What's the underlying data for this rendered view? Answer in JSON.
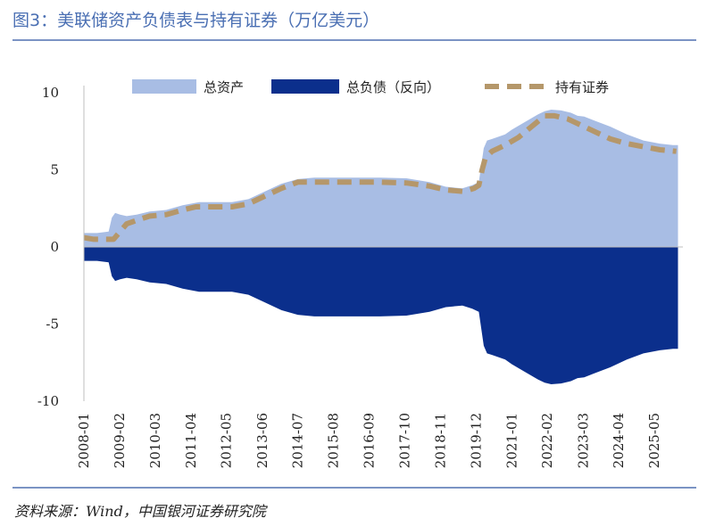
{
  "figure_title": "图3：美联储资产负债表与持有证券（万亿美元）",
  "source_note": "资料来源：Wind，中国银河证券研究院",
  "colors": {
    "title": "#4a6fb3",
    "total_assets": "#a8bde4",
    "total_liabilities": "#0b2f8c",
    "securities": "#b5976a",
    "negative_tick": "#d7191c",
    "rule": "#7b93c4"
  },
  "chart_data": {
    "type": "area",
    "title": "图3：美联储资产负债表与持有证券（万亿美元）",
    "ylim": [
      -10,
      10
    ],
    "yticks": [
      10,
      5,
      0,
      -5,
      -10
    ],
    "ytick_labels": [
      "10",
      "5",
      "0",
      "-5",
      "-10"
    ],
    "xlim": [
      2008.0,
      2026.2
    ],
    "xtick_labels": [
      "2008-01",
      "2009-02",
      "2010-03",
      "2011-04",
      "2012-05",
      "2013-06",
      "2014-07",
      "2015-08",
      "2016-09",
      "2017-10",
      "2018-11",
      "2019-12",
      "2021-01",
      "2022-02",
      "2023-03",
      "2024-04",
      "2025-05"
    ],
    "xtick_positions": [
      2008.0,
      2009.08,
      2010.17,
      2011.25,
      2012.33,
      2013.42,
      2014.5,
      2015.58,
      2016.67,
      2017.75,
      2018.83,
      2019.92,
      2021.0,
      2022.08,
      2023.17,
      2024.25,
      2025.33
    ],
    "legend": [
      "总资产",
      "总负债（反向）",
      "持有证券"
    ],
    "series": [
      {
        "name": "总资产",
        "style": "area",
        "x": [
          2008.0,
          2008.4,
          2008.75,
          2008.85,
          2008.95,
          2009.1,
          2009.3,
          2009.6,
          2010.0,
          2010.5,
          2011.0,
          2011.5,
          2012.0,
          2012.5,
          2013.0,
          2013.5,
          2014.0,
          2014.5,
          2015.0,
          2016.0,
          2017.0,
          2017.8,
          2018.5,
          2019.0,
          2019.5,
          2019.8,
          2020.0,
          2020.15,
          2020.25,
          2020.4,
          2020.8,
          2021.0,
          2021.4,
          2021.8,
          2022.0,
          2022.2,
          2022.5,
          2022.8,
          2023.0,
          2023.2,
          2023.5,
          2024.0,
          2024.5,
          2025.0,
          2025.5,
          2025.9,
          2026.05
        ],
        "values": [
          0.9,
          0.9,
          1.0,
          1.9,
          2.2,
          2.1,
          2.0,
          2.1,
          2.3,
          2.4,
          2.7,
          2.9,
          2.9,
          2.9,
          3.1,
          3.6,
          4.1,
          4.4,
          4.5,
          4.5,
          4.5,
          4.45,
          4.2,
          3.9,
          3.8,
          4.0,
          4.2,
          6.4,
          6.9,
          7.0,
          7.3,
          7.6,
          8.1,
          8.6,
          8.8,
          8.9,
          8.85,
          8.7,
          8.5,
          8.45,
          8.2,
          7.8,
          7.3,
          6.9,
          6.7,
          6.6,
          6.6
        ]
      },
      {
        "name": "总负债（反向）",
        "style": "area",
        "x": [
          2008.0,
          2008.4,
          2008.75,
          2008.85,
          2008.95,
          2009.1,
          2009.3,
          2009.6,
          2010.0,
          2010.5,
          2011.0,
          2011.5,
          2012.0,
          2012.5,
          2013.0,
          2013.5,
          2014.0,
          2014.5,
          2015.0,
          2016.0,
          2017.0,
          2017.8,
          2018.5,
          2019.0,
          2019.5,
          2019.8,
          2020.0,
          2020.15,
          2020.25,
          2020.4,
          2020.8,
          2021.0,
          2021.4,
          2021.8,
          2022.0,
          2022.2,
          2022.5,
          2022.8,
          2023.0,
          2023.2,
          2023.5,
          2024.0,
          2024.5,
          2025.0,
          2025.5,
          2025.9,
          2026.05
        ],
        "values": [
          -0.9,
          -0.9,
          -1.0,
          -1.9,
          -2.2,
          -2.1,
          -2.0,
          -2.1,
          -2.3,
          -2.4,
          -2.7,
          -2.9,
          -2.9,
          -2.9,
          -3.1,
          -3.6,
          -4.1,
          -4.4,
          -4.5,
          -4.5,
          -4.5,
          -4.45,
          -4.2,
          -3.9,
          -3.8,
          -4.0,
          -4.2,
          -6.4,
          -6.9,
          -7.0,
          -7.3,
          -7.6,
          -8.1,
          -8.6,
          -8.8,
          -8.9,
          -8.85,
          -8.7,
          -8.5,
          -8.45,
          -8.2,
          -7.8,
          -7.3,
          -6.9,
          -6.7,
          -6.6,
          -6.6
        ]
      },
      {
        "name": "持有证券",
        "style": "dashed-line",
        "x": [
          2008.0,
          2008.3,
          2008.6,
          2008.9,
          2009.1,
          2009.3,
          2009.7,
          2010.0,
          2010.5,
          2011.0,
          2011.4,
          2012.0,
          2012.5,
          2013.0,
          2013.5,
          2014.0,
          2014.5,
          2015.0,
          2016.0,
          2017.0,
          2017.8,
          2018.5,
          2019.0,
          2019.5,
          2019.7,
          2019.85,
          2020.0,
          2020.1,
          2020.2,
          2020.4,
          2020.8,
          2021.2,
          2021.6,
          2022.0,
          2022.3,
          2022.7,
          2023.0,
          2023.5,
          2024.0,
          2024.5,
          2025.0,
          2025.5,
          2026.0
        ],
        "values": [
          0.6,
          0.5,
          0.5,
          0.5,
          1.0,
          1.5,
          1.8,
          2.0,
          2.1,
          2.4,
          2.6,
          2.6,
          2.6,
          2.8,
          3.3,
          3.8,
          4.2,
          4.2,
          4.2,
          4.2,
          4.15,
          3.95,
          3.7,
          3.6,
          3.7,
          3.8,
          4.0,
          5.0,
          5.8,
          6.2,
          6.6,
          7.1,
          7.8,
          8.5,
          8.5,
          8.3,
          8.0,
          7.5,
          7.0,
          6.7,
          6.5,
          6.3,
          6.2
        ]
      }
    ]
  }
}
